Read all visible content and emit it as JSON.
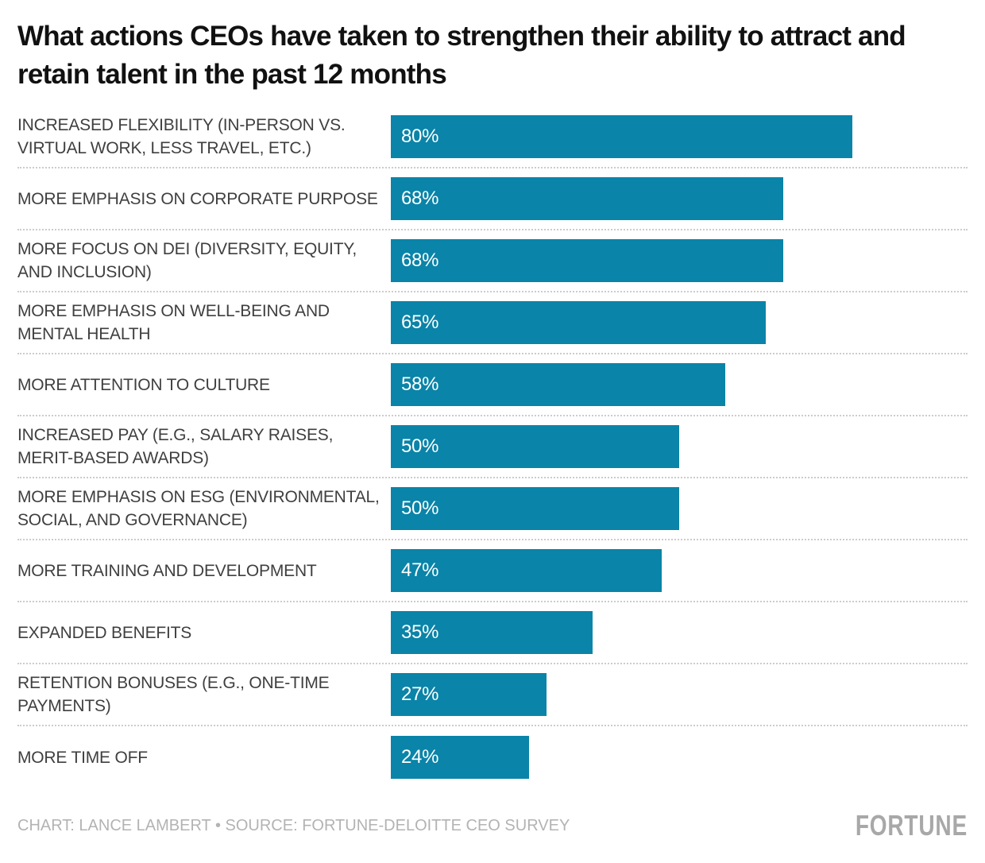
{
  "header": {
    "title": "What actions CEOs have taken to strengthen their ability to attract and retain talent in the past 12 months"
  },
  "chart_data": {
    "type": "bar",
    "orientation": "horizontal",
    "title": "What actions CEOs have taken to strengthen their ability to attract and retain talent in the past 12 months",
    "categories": [
      "INCREASED FLEXIBILITY (IN-PERSON VS. VIRTUAL WORK, LESS TRAVEL, ETC.)",
      "MORE EMPHASIS ON CORPORATE PURPOSE",
      "MORE FOCUS ON DEI (DIVERSITY, EQUITY, AND INCLUSION)",
      "MORE EMPHASIS ON WELL-BEING AND MENTAL HEALTH",
      "MORE ATTENTION TO CULTURE",
      "INCREASED PAY (E.G., SALARY RAISES, MERIT-BASED AWARDS)",
      "MORE EMPHASIS ON ESG (ENVIRONMENTAL, SOCIAL, AND GOVERNANCE)",
      "MORE TRAINING AND DEVELOPMENT",
      "EXPANDED BENEFITS",
      "RETENTION BONUSES (E.G., ONE-TIME PAYMENTS)",
      "MORE TIME OFF"
    ],
    "values": [
      80,
      68,
      68,
      65,
      58,
      50,
      50,
      47,
      35,
      27,
      24
    ],
    "value_labels": [
      "80%",
      "68%",
      "68%",
      "65%",
      "58%",
      "50%",
      "50%",
      "47%",
      "35%",
      "27%",
      "24%"
    ],
    "xlim": [
      0,
      100
    ],
    "grid": false,
    "legend": false,
    "bar_color": "#0a84a8",
    "category_label_color": "#3f3f3f",
    "value_label_color": "#ffffff",
    "separator_color": "#cccccc"
  },
  "footer": {
    "credit": "CHART: LANCE LAMBERT • SOURCE: FORTUNE-DELOITTE CEO SURVEY",
    "brand": "FORTUNE"
  }
}
